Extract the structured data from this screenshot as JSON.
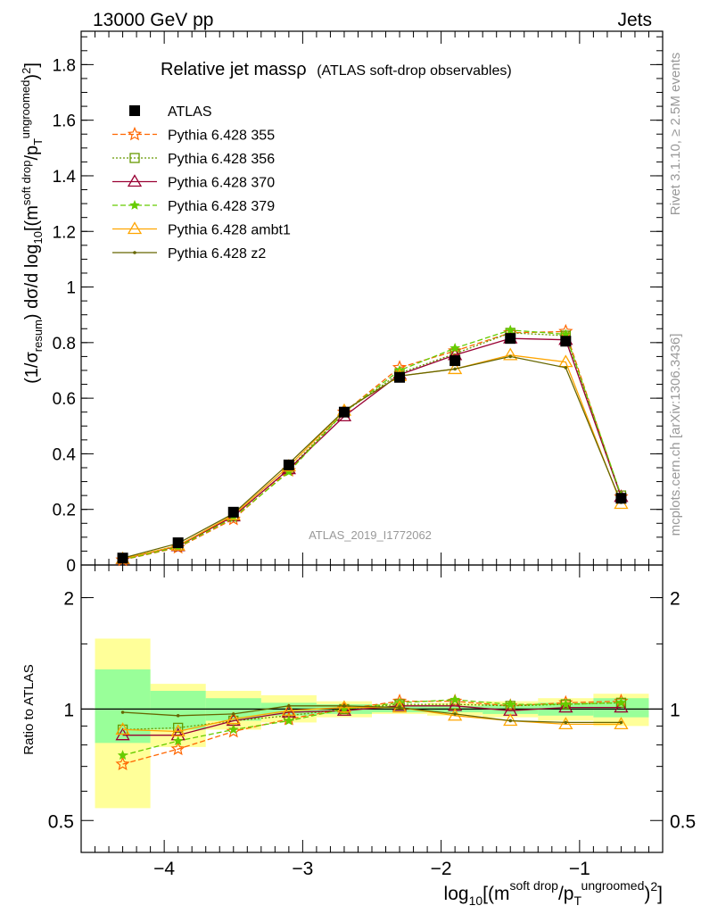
{
  "header": {
    "energy_label": "13000 GeV pp",
    "process_label": "Jets"
  },
  "side_labels": {
    "rivet": "Rivet 3.1.10, ≥ 2.5M events",
    "mcplots": "mcplots.cern.ch [arXiv:1306.3436]"
  },
  "analysis_id": "ATLAS_2019_I1772062",
  "chart_data": [
    {
      "type": "line",
      "title": "Relative jet massρ",
      "subtitle": "(ATLAS soft-drop observables)",
      "ylabel": "(1/σresum) dσ/d log10[(msoft drop/pTungroomed)2]",
      "xlim": [
        -4.6,
        -0.4
      ],
      "ylim": [
        0,
        1.92
      ],
      "yticks": [
        0,
        0.2,
        0.4,
        0.6,
        0.8,
        1,
        1.2,
        1.4,
        1.6,
        1.8
      ],
      "ytick_labels": [
        "0",
        "0.2",
        "0.4",
        "0.6",
        "0.8",
        "1",
        "1.2",
        "1.4",
        "1.6",
        "1.8"
      ],
      "x": [
        -4.3,
        -3.9,
        -3.5,
        -3.1,
        -2.7,
        -2.3,
        -1.9,
        -1.5,
        -1.1,
        -0.7
      ],
      "data": {
        "name": "ATLAS",
        "color": "#000000",
        "y": [
          0.025,
          0.08,
          0.19,
          0.36,
          0.55,
          0.675,
          0.735,
          0.815,
          0.805,
          0.24
        ]
      },
      "series": [
        {
          "name": "Pythia 6.428 355",
          "color": "#ff6600",
          "dash": "6,3",
          "marker": "star-open",
          "y": [
            0.018,
            0.063,
            0.165,
            0.34,
            0.55,
            0.71,
            0.77,
            0.835,
            0.84,
            0.245
          ]
        },
        {
          "name": "Pythia 6.428 356",
          "color": "#669900",
          "dash": "2,2",
          "marker": "square-open",
          "y": [
            0.022,
            0.07,
            0.175,
            0.345,
            0.55,
            0.69,
            0.76,
            0.835,
            0.825,
            0.25
          ]
        },
        {
          "name": "Pythia 6.428 370",
          "color": "#990033",
          "dash": "",
          "marker": "triangle-open",
          "y": [
            0.021,
            0.068,
            0.175,
            0.345,
            0.535,
            0.685,
            0.755,
            0.815,
            0.81,
            0.245
          ]
        },
        {
          "name": "Pythia 6.428 379",
          "color": "#66cc00",
          "dash": "6,3",
          "marker": "star-filled",
          "y": [
            0.019,
            0.065,
            0.17,
            0.335,
            0.55,
            0.7,
            0.78,
            0.845,
            0.83,
            0.25
          ]
        },
        {
          "name": "Pythia 6.428 ambt1",
          "color": "#ffa500",
          "dash": "",
          "marker": "triangle-open",
          "y": [
            0.022,
            0.07,
            0.18,
            0.355,
            0.555,
            0.68,
            0.705,
            0.755,
            0.73,
            0.22
          ]
        },
        {
          "name": "Pythia 6.428 z2",
          "color": "#666600",
          "dash": "",
          "marker": "dot",
          "y": [
            0.025,
            0.078,
            0.185,
            0.365,
            0.555,
            0.68,
            0.705,
            0.75,
            0.71,
            0.225
          ]
        }
      ]
    },
    {
      "type": "line",
      "ylabel": "Ratio to ATLAS",
      "xlabel": "log10[(msoft drop/pTungroomed)2]",
      "yscale": "log",
      "ylim": [
        0.41,
        2.45
      ],
      "yticks": [
        0.5,
        1,
        2
      ],
      "ytick_labels": [
        "0.5",
        "1",
        "2"
      ],
      "xticks": [
        -4,
        -3,
        -2,
        -1
      ],
      "xtick_labels": [
        "−4",
        "−3",
        "−2",
        "−1"
      ],
      "x": [
        -4.3,
        -3.9,
        -3.5,
        -3.1,
        -2.7,
        -2.3,
        -1.9,
        -1.5,
        -1.1,
        -0.7
      ],
      "bins": [
        -4.5,
        -4.1,
        -3.7,
        -3.3,
        -2.9,
        -2.5,
        -2.1,
        -1.7,
        -1.3,
        -0.9,
        -0.5
      ],
      "band_green": [
        [
          0.81,
          1.28
        ],
        [
          0.88,
          1.12
        ],
        [
          0.93,
          1.07
        ],
        [
          0.96,
          1.04
        ],
        [
          0.97,
          1.03
        ],
        [
          0.98,
          1.02
        ],
        [
          0.98,
          1.02
        ],
        [
          0.97,
          1.03
        ],
        [
          0.96,
          1.04
        ],
        [
          0.95,
          1.07
        ]
      ],
      "band_yellow": [
        [
          0.54,
          1.55
        ],
        [
          0.79,
          1.17
        ],
        [
          0.88,
          1.12
        ],
        [
          0.92,
          1.09
        ],
        [
          0.95,
          1.05
        ],
        [
          0.97,
          1.03
        ],
        [
          0.96,
          1.04
        ],
        [
          0.95,
          1.05
        ],
        [
          0.93,
          1.07
        ],
        [
          0.9,
          1.1
        ]
      ],
      "series": [
        {
          "name": "Pythia 6.428 355",
          "y": [
            0.71,
            0.78,
            0.87,
            0.94,
            1.0,
            1.05,
            1.05,
            1.02,
            1.04,
            1.05
          ]
        },
        {
          "name": "Pythia 6.428 356",
          "y": [
            0.88,
            0.89,
            0.93,
            0.96,
            1.0,
            1.03,
            1.03,
            1.02,
            1.03,
            1.04
          ]
        },
        {
          "name": "Pythia 6.428 370",
          "y": [
            0.85,
            0.85,
            0.93,
            0.98,
            0.99,
            1.02,
            1.02,
            0.99,
            1.01,
            1.01
          ]
        },
        {
          "name": "Pythia 6.428 379",
          "y": [
            0.75,
            0.82,
            0.88,
            0.93,
            1.0,
            1.04,
            1.06,
            1.03,
            1.03,
            1.04
          ]
        },
        {
          "name": "Pythia 6.428 ambt1",
          "y": [
            0.88,
            0.87,
            0.94,
            0.99,
            1.01,
            1.01,
            0.96,
            0.93,
            0.91,
            0.91
          ]
        },
        {
          "name": "Pythia 6.428 z2",
          "y": [
            0.98,
            0.96,
            0.97,
            1.02,
            1.02,
            1.01,
            0.97,
            0.93,
            0.92,
            0.92
          ]
        }
      ]
    }
  ]
}
